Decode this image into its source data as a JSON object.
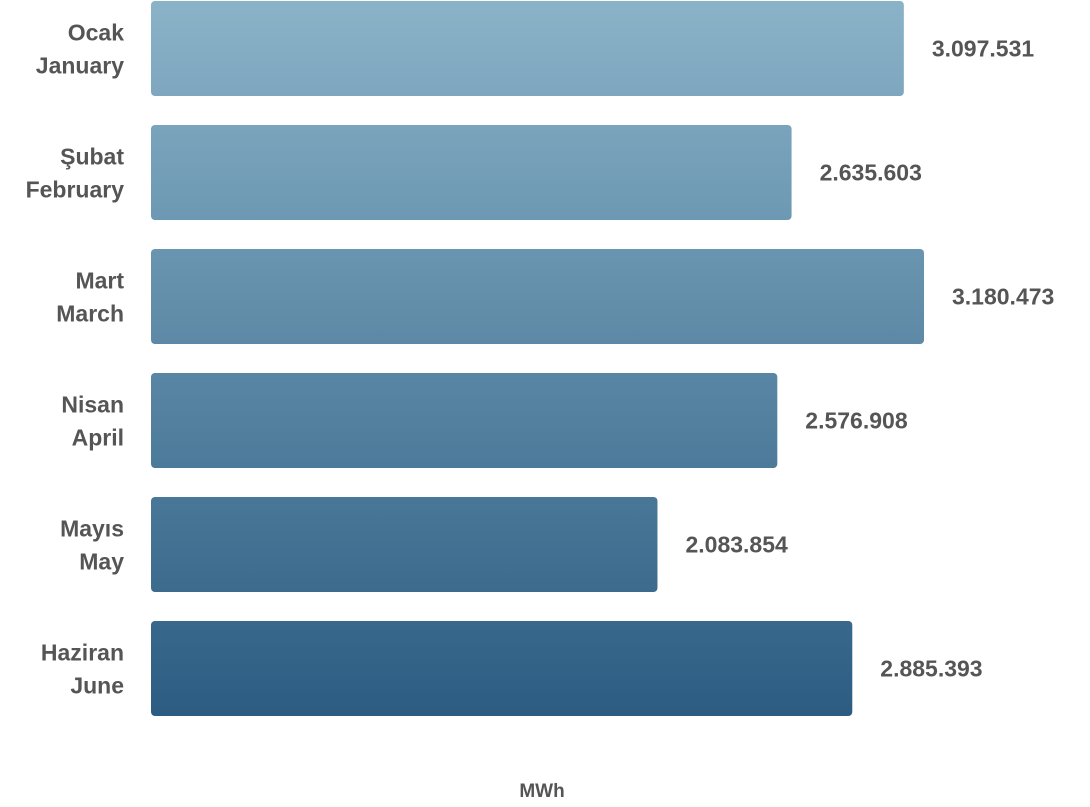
{
  "chart_data": {
    "type": "bar",
    "orientation": "horizontal",
    "categories": [
      {
        "line1": "Ocak",
        "line2": "January"
      },
      {
        "line1": "Şubat",
        "line2": "February"
      },
      {
        "line1": "Mart",
        "line2": "March"
      },
      {
        "line1": "Nisan",
        "line2": "April"
      },
      {
        "line1": "Mayıs",
        "line2": "May"
      },
      {
        "line1": "Haziran",
        "line2": "June"
      }
    ],
    "values": [
      3097531,
      2635603,
      3180473,
      2576908,
      2083854,
      2885393
    ],
    "value_labels": [
      "3.097.531",
      "2.635.603",
      "3.180.473",
      "2.576.908",
      "2.083.854",
      "2.885.393"
    ],
    "xlabel": "MWh",
    "title": "",
    "grid": false,
    "legend": "none",
    "colors": {
      "bar_top": "#8AB3C8",
      "bar_bottom": "#2C5C82",
      "text": "#555555"
    }
  }
}
